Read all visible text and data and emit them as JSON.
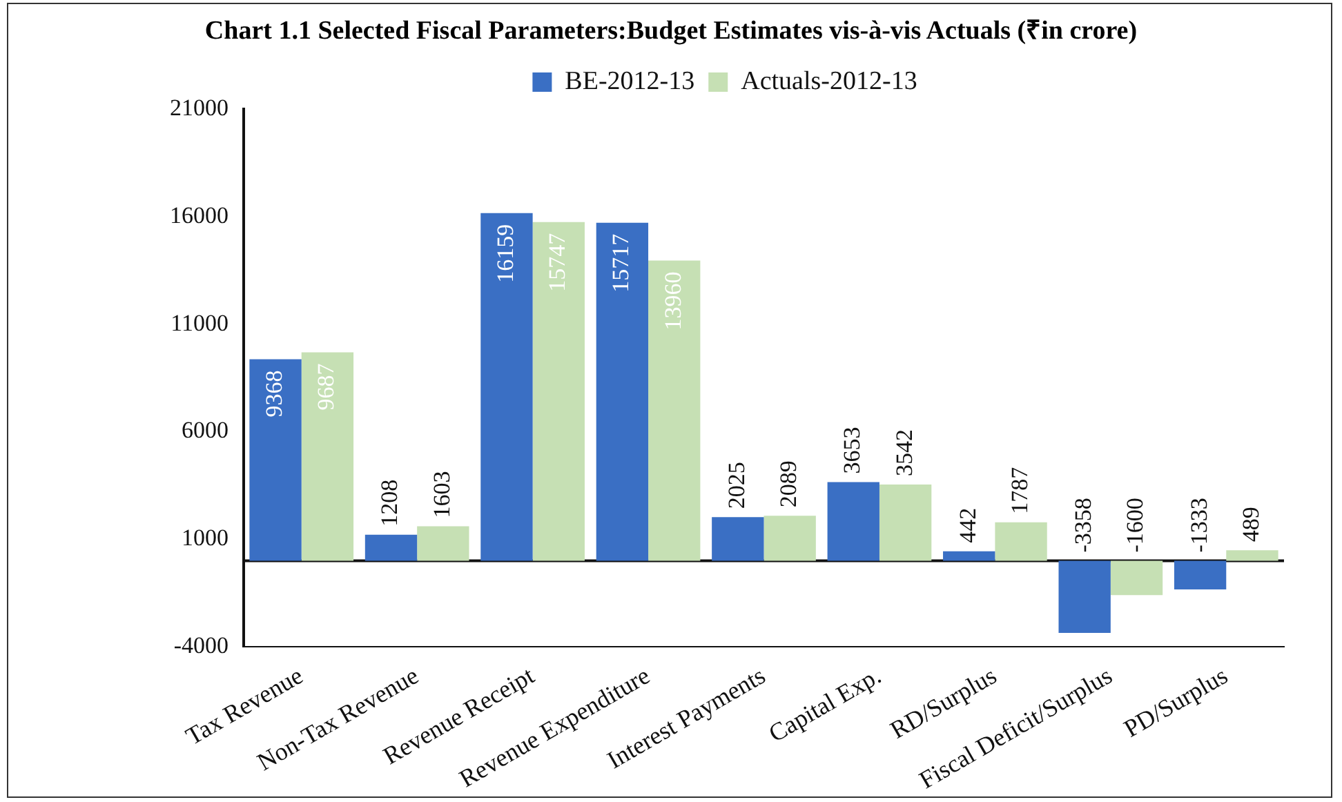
{
  "chart_data": {
    "type": "bar",
    "title": "Chart 1.1 Selected Fiscal Parameters:Budget Estimates vis-à-vis  Actuals (₹in crore)",
    "categories": [
      "Tax Revenue",
      "Non-Tax Revenue",
      "Revenue Receipt",
      "Revenue Expenditure",
      "Interest Payments",
      "Capital Exp.",
      "RD/Surplus",
      "Fiscal Deficit/Surplus",
      "PD/Surplus"
    ],
    "series": [
      {
        "name": "BE-2012-13",
        "color": "#3a6fc4",
        "values": [
          9368,
          1208,
          16159,
          15717,
          2025,
          3653,
          442,
          -3358,
          -1333
        ]
      },
      {
        "name": "Actuals-2012-13",
        "color": "#c6e0b4",
        "values": [
          9687,
          1603,
          15747,
          13960,
          2089,
          3542,
          1787,
          -1600,
          489
        ]
      }
    ],
    "ylim": [
      -4000,
      21000
    ],
    "yticks": [
      -4000,
      1000,
      6000,
      11000,
      16000,
      21000
    ],
    "grid": false,
    "legend": "top",
    "data_labels": true
  }
}
